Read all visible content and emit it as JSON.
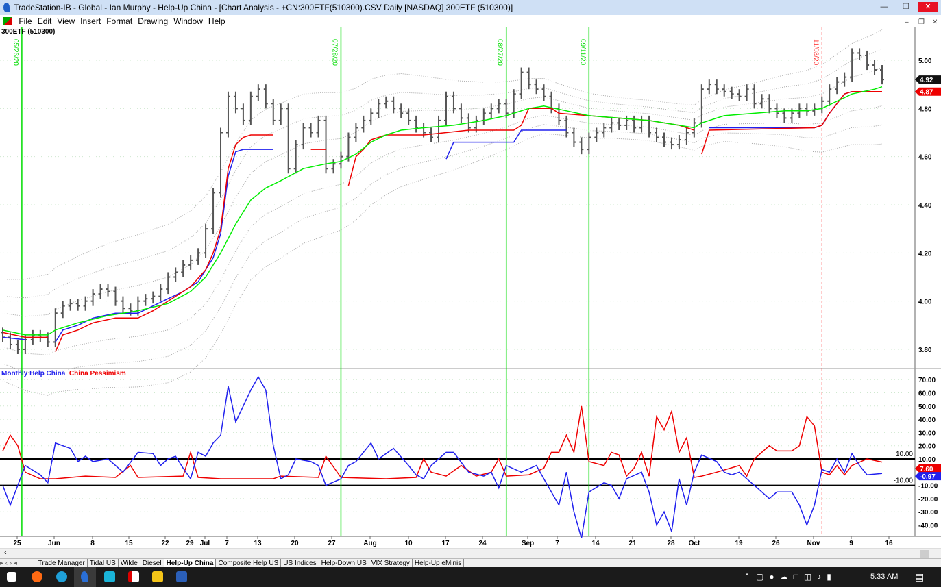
{
  "window": {
    "title": "TradeStation-IB - Global - Ian Murphy - Help-Up China - [Chart Analysis - +CN:300ETF(510300).CSV Daily [NASDAQ] 300ETF (510300)]"
  },
  "menu": [
    "File",
    "Edit",
    "View",
    "Insert",
    "Format",
    "Drawing",
    "Window",
    "Help"
  ],
  "chart": {
    "symbol": "300ETF (510300)"
  },
  "indicator": {
    "label1": "Monthly Help China",
    "label2": "China Pessimism",
    "upper_level": "10.00",
    "lower_level": "-10.00",
    "blue_last": "-0.97",
    "red_last": "7.60"
  },
  "colors": {
    "bars": "#555555",
    "ma": "#00ee00",
    "stop_red": "#ee0000",
    "stop_blue": "#2020ee",
    "vline": "#00dd00",
    "vline_future": "#ff2020"
  },
  "chart_data": {
    "type": "bar",
    "price_axis": {
      "ticks": [
        "5.00",
        "4.80",
        "4.60",
        "4.40",
        "4.20",
        "4.00",
        "3.80"
      ],
      "last": "4.92",
      "stop_last": "4.87"
    },
    "osc_axis": {
      "ticks": [
        "70.00",
        "60.00",
        "50.00",
        "40.00",
        "30.00",
        "20.00",
        "10.00",
        "-10.00",
        "-20.00",
        "-30.00",
        "-40.00"
      ]
    },
    "date_ticks": [
      "25",
      "Jun",
      "8",
      "15",
      "22",
      "29",
      "Jul",
      "7",
      "13",
      "20",
      "27",
      "Aug",
      "10",
      "17",
      "24",
      "Sep",
      "7",
      "14",
      "21",
      "28",
      "Oct",
      "19",
      "26",
      "Nov",
      "9",
      "16"
    ],
    "vertical_markers": [
      {
        "label": "05/26/20",
        "bar": 3
      },
      {
        "label": "07/28/20",
        "bar": 45
      },
      {
        "label": "08/27/20",
        "bar": 67
      },
      {
        "label": "09/11/20",
        "bar": 78
      },
      {
        "label": "11/03/20",
        "bar": 109,
        "dashed": true
      }
    ],
    "closes": [
      3.85,
      3.82,
      3.8,
      3.84,
      3.86,
      3.85,
      3.83,
      3.95,
      3.98,
      3.99,
      3.98,
      4.0,
      4.03,
      4.05,
      4.04,
      4.0,
      3.97,
      3.96,
      4.0,
      4.01,
      4.02,
      4.05,
      4.1,
      4.12,
      4.15,
      4.17,
      4.2,
      4.3,
      4.45,
      4.7,
      4.85,
      4.8,
      4.75,
      4.85,
      4.88,
      4.82,
      4.75,
      4.8,
      4.55,
      4.65,
      4.72,
      4.7,
      4.75,
      4.55,
      4.57,
      4.6,
      4.68,
      4.72,
      4.75,
      4.78,
      4.82,
      4.83,
      4.8,
      4.78,
      4.75,
      4.72,
      4.7,
      4.68,
      4.75,
      4.85,
      4.8,
      4.76,
      4.72,
      4.75,
      4.78,
      4.8,
      4.82,
      4.78,
      4.86,
      4.95,
      4.9,
      4.88,
      4.85,
      4.8,
      4.75,
      4.7,
      4.66,
      4.63,
      4.68,
      4.7,
      4.72,
      4.74,
      4.73,
      4.75,
      4.72,
      4.75,
      4.7,
      4.68,
      4.66,
      4.65,
      4.67,
      4.7,
      4.74,
      4.88,
      4.9,
      4.88,
      4.87,
      4.86,
      4.85,
      4.88,
      4.82,
      4.84,
      4.8,
      4.78,
      4.76,
      4.78,
      4.8,
      4.79,
      4.8,
      4.83,
      4.88,
      4.91,
      4.93,
      5.03,
      5.02,
      4.98,
      4.96,
      4.92
    ],
    "ma": [
      [
        0,
        3.88
      ],
      [
        3,
        3.86
      ],
      [
        6,
        3.86
      ],
      [
        7,
        3.88
      ],
      [
        10,
        3.91
      ],
      [
        14,
        3.94
      ],
      [
        18,
        3.96
      ],
      [
        22,
        3.99
      ],
      [
        25,
        4.04
      ],
      [
        27,
        4.1
      ],
      [
        29,
        4.2
      ],
      [
        31,
        4.32
      ],
      [
        33,
        4.42
      ],
      [
        35,
        4.47
      ],
      [
        37,
        4.5
      ],
      [
        40,
        4.55
      ],
      [
        43,
        4.57
      ],
      [
        45,
        4.58
      ],
      [
        47,
        4.61
      ],
      [
        49,
        4.66
      ],
      [
        51,
        4.69
      ],
      [
        53,
        4.71
      ],
      [
        56,
        4.72
      ],
      [
        60,
        4.73
      ],
      [
        64,
        4.75
      ],
      [
        67,
        4.77
      ],
      [
        70,
        4.8
      ],
      [
        72,
        4.81
      ],
      [
        75,
        4.79
      ],
      [
        78,
        4.77
      ],
      [
        82,
        4.76
      ],
      [
        86,
        4.75
      ],
      [
        90,
        4.73
      ],
      [
        92,
        4.72
      ],
      [
        93,
        4.74
      ],
      [
        96,
        4.77
      ],
      [
        100,
        4.78
      ],
      [
        104,
        4.79
      ],
      [
        107,
        4.79
      ],
      [
        109,
        4.8
      ],
      [
        111,
        4.83
      ],
      [
        113,
        4.86
      ],
      [
        116,
        4.88
      ],
      [
        117,
        4.89
      ]
    ],
    "envelope_offsets": [
      0.07,
      0.14,
      0.21
    ],
    "stop_red": [
      [
        [
          0,
          3.87
        ],
        [
          3,
          3.85
        ],
        [
          6,
          3.85
        ]
      ],
      [
        [
          7,
          3.79
        ],
        [
          8,
          3.86
        ],
        [
          10,
          3.88
        ],
        [
          12,
          3.91
        ],
        [
          15,
          3.93
        ],
        [
          18,
          3.93
        ],
        [
          20,
          3.96
        ],
        [
          22,
          4.0
        ],
        [
          24,
          4.04
        ],
        [
          25,
          4.06
        ],
        [
          27,
          4.13
        ],
        [
          28,
          4.2
        ],
        [
          29,
          4.3
        ],
        [
          30,
          4.55
        ],
        [
          31,
          4.65
        ],
        [
          32,
          4.68
        ],
        [
          33,
          4.69
        ],
        [
          36,
          4.69
        ]
      ],
      [
        [
          41,
          4.63
        ],
        [
          43,
          4.63
        ]
      ],
      [
        [
          46,
          4.48
        ],
        [
          47,
          4.6
        ],
        [
          48,
          4.63
        ],
        [
          49,
          4.67
        ],
        [
          51,
          4.69
        ],
        [
          56,
          4.69
        ],
        [
          62,
          4.71
        ],
        [
          68,
          4.71
        ],
        [
          69,
          4.73
        ],
        [
          70,
          4.8
        ],
        [
          73,
          4.8
        ],
        [
          74,
          4.78
        ],
        [
          78,
          4.77
        ],
        [
          82,
          4.76
        ],
        [
          86,
          4.75
        ],
        [
          90,
          4.73
        ],
        [
          92,
          4.71
        ]
      ],
      [
        [
          93,
          4.61
        ],
        [
          94,
          4.71
        ],
        [
          108,
          4.72
        ],
        [
          109,
          4.73
        ],
        [
          110,
          4.78
        ],
        [
          112,
          4.86
        ],
        [
          113,
          4.87
        ],
        [
          117,
          4.87
        ]
      ]
    ],
    "stop_blue": [
      [
        [
          0,
          3.85
        ],
        [
          3,
          3.84
        ]
      ],
      [
        [
          7,
          3.83
        ],
        [
          8,
          3.88
        ],
        [
          10,
          3.9
        ],
        [
          12,
          3.93
        ],
        [
          15,
          3.95
        ],
        [
          18,
          3.95
        ],
        [
          22,
          4.01
        ],
        [
          24,
          4.04
        ],
        [
          26,
          4.08
        ],
        [
          28,
          4.18
        ],
        [
          29,
          4.28
        ],
        [
          30,
          4.52
        ],
        [
          31,
          4.62
        ],
        [
          32,
          4.63
        ],
        [
          36,
          4.63
        ]
      ],
      [
        [
          59,
          4.59
        ],
        [
          60,
          4.66
        ],
        [
          68,
          4.66
        ],
        [
          69,
          4.71
        ],
        [
          75,
          4.71
        ]
      ],
      [
        [
          94,
          4.72
        ],
        [
          108,
          4.72
        ],
        [
          109,
          4.73
        ],
        [
          110,
          4.78
        ],
        [
          112,
          4.86
        ],
        [
          113,
          4.87
        ],
        [
          117,
          4.87
        ]
      ]
    ],
    "osc_blue": [
      [
        0,
        -10
      ],
      [
        1,
        -25
      ],
      [
        2,
        -10
      ],
      [
        3,
        5
      ],
      [
        5,
        -2
      ],
      [
        6,
        -8
      ],
      [
        7,
        22
      ],
      [
        9,
        18
      ],
      [
        10,
        8
      ],
      [
        11,
        12
      ],
      [
        12,
        8
      ],
      [
        14,
        10
      ],
      [
        15,
        5
      ],
      [
        16,
        0
      ],
      [
        18,
        15
      ],
      [
        20,
        14
      ],
      [
        21,
        5
      ],
      [
        22,
        10
      ],
      [
        23,
        12
      ],
      [
        24,
        3
      ],
      [
        25,
        -5
      ],
      [
        26,
        15
      ],
      [
        27,
        12
      ],
      [
        28,
        22
      ],
      [
        29,
        28
      ],
      [
        30,
        65
      ],
      [
        31,
        38
      ],
      [
        33,
        62
      ],
      [
        34,
        72
      ],
      [
        35,
        62
      ],
      [
        36,
        20
      ],
      [
        37,
        -5
      ],
      [
        38,
        -2
      ],
      [
        39,
        10
      ],
      [
        41,
        8
      ],
      [
        42,
        5
      ],
      [
        43,
        -10
      ],
      [
        45,
        -5
      ],
      [
        46,
        5
      ],
      [
        47,
        8
      ],
      [
        49,
        22
      ],
      [
        50,
        10
      ],
      [
        52,
        18
      ],
      [
        54,
        5
      ],
      [
        55,
        -2
      ],
      [
        56,
        -5
      ],
      [
        57,
        5
      ],
      [
        59,
        15
      ],
      [
        60,
        15
      ],
      [
        62,
        0
      ],
      [
        64,
        -3
      ],
      [
        65,
        0
      ],
      [
        66,
        -12
      ],
      [
        67,
        5
      ],
      [
        69,
        0
      ],
      [
        71,
        5
      ],
      [
        72,
        -5
      ],
      [
        74,
        -25
      ],
      [
        75,
        0
      ],
      [
        76,
        -30
      ],
      [
        77,
        -50
      ],
      [
        78,
        -15
      ],
      [
        80,
        -8
      ],
      [
        81,
        -10
      ],
      [
        82,
        -20
      ],
      [
        83,
        -5
      ],
      [
        85,
        0
      ],
      [
        86,
        -15
      ],
      [
        87,
        -40
      ],
      [
        88,
        -30
      ],
      [
        89,
        -45
      ],
      [
        90,
        -5
      ],
      [
        91,
        -25
      ],
      [
        92,
        0
      ],
      [
        93,
        13
      ],
      [
        95,
        8
      ],
      [
        96,
        0
      ],
      [
        97,
        -2
      ],
      [
        98,
        0
      ],
      [
        100,
        -10
      ],
      [
        102,
        -20
      ],
      [
        103,
        -15
      ],
      [
        105,
        -15
      ],
      [
        106,
        -25
      ],
      [
        107,
        -40
      ],
      [
        108,
        -25
      ],
      [
        109,
        2
      ],
      [
        110,
        0
      ],
      [
        111,
        10
      ],
      [
        112,
        0
      ],
      [
        113,
        14
      ],
      [
        114,
        5
      ],
      [
        115,
        -2
      ],
      [
        117,
        -0.97
      ]
    ],
    "osc_red": [
      [
        0,
        16
      ],
      [
        1,
        28
      ],
      [
        2,
        20
      ],
      [
        3,
        0
      ],
      [
        5,
        -5
      ],
      [
        7,
        -5
      ],
      [
        11,
        -3
      ],
      [
        15,
        -4
      ],
      [
        17,
        5
      ],
      [
        18,
        -4
      ],
      [
        24,
        -3
      ],
      [
        25,
        15
      ],
      [
        26,
        -4
      ],
      [
        29,
        -5
      ],
      [
        36,
        -5
      ],
      [
        37,
        -3
      ],
      [
        42,
        -4
      ],
      [
        43,
        12
      ],
      [
        45,
        -4
      ],
      [
        51,
        -5
      ],
      [
        55,
        -4
      ],
      [
        56,
        10
      ],
      [
        57,
        0
      ],
      [
        59,
        -3
      ],
      [
        61,
        5
      ],
      [
        63,
        -3
      ],
      [
        65,
        0
      ],
      [
        66,
        10
      ],
      [
        67,
        -3
      ],
      [
        70,
        -2
      ],
      [
        72,
        3
      ],
      [
        73,
        15
      ],
      [
        74,
        15
      ],
      [
        75,
        28
      ],
      [
        76,
        15
      ],
      [
        77,
        50
      ],
      [
        78,
        8
      ],
      [
        80,
        5
      ],
      [
        81,
        15
      ],
      [
        82,
        13
      ],
      [
        83,
        -3
      ],
      [
        84,
        3
      ],
      [
        85,
        15
      ],
      [
        86,
        -3
      ],
      [
        87,
        42
      ],
      [
        88,
        32
      ],
      [
        89,
        46
      ],
      [
        90,
        15
      ],
      [
        91,
        26
      ],
      [
        92,
        -4
      ],
      [
        93,
        -3
      ],
      [
        95,
        0
      ],
      [
        98,
        5
      ],
      [
        99,
        -3
      ],
      [
        100,
        10
      ],
      [
        102,
        20
      ],
      [
        103,
        16
      ],
      [
        105,
        16
      ],
      [
        106,
        20
      ],
      [
        107,
        42
      ],
      [
        108,
        35
      ],
      [
        109,
        0
      ],
      [
        110,
        -2
      ],
      [
        111,
        5
      ],
      [
        112,
        -2
      ],
      [
        113,
        5
      ],
      [
        115,
        10
      ],
      [
        117,
        7.6
      ]
    ]
  },
  "tabs": [
    "Trade Manager",
    "Tidal US",
    "Wilde",
    "Diesel",
    "Help-Up China",
    "Composite Help US",
    "US Indices",
    "Help-Down US",
    "VIX Strategy",
    "Help-Up eMinis"
  ],
  "active_tab": "Help-Up China",
  "taskbar": {
    "time": "5:33 AM"
  }
}
